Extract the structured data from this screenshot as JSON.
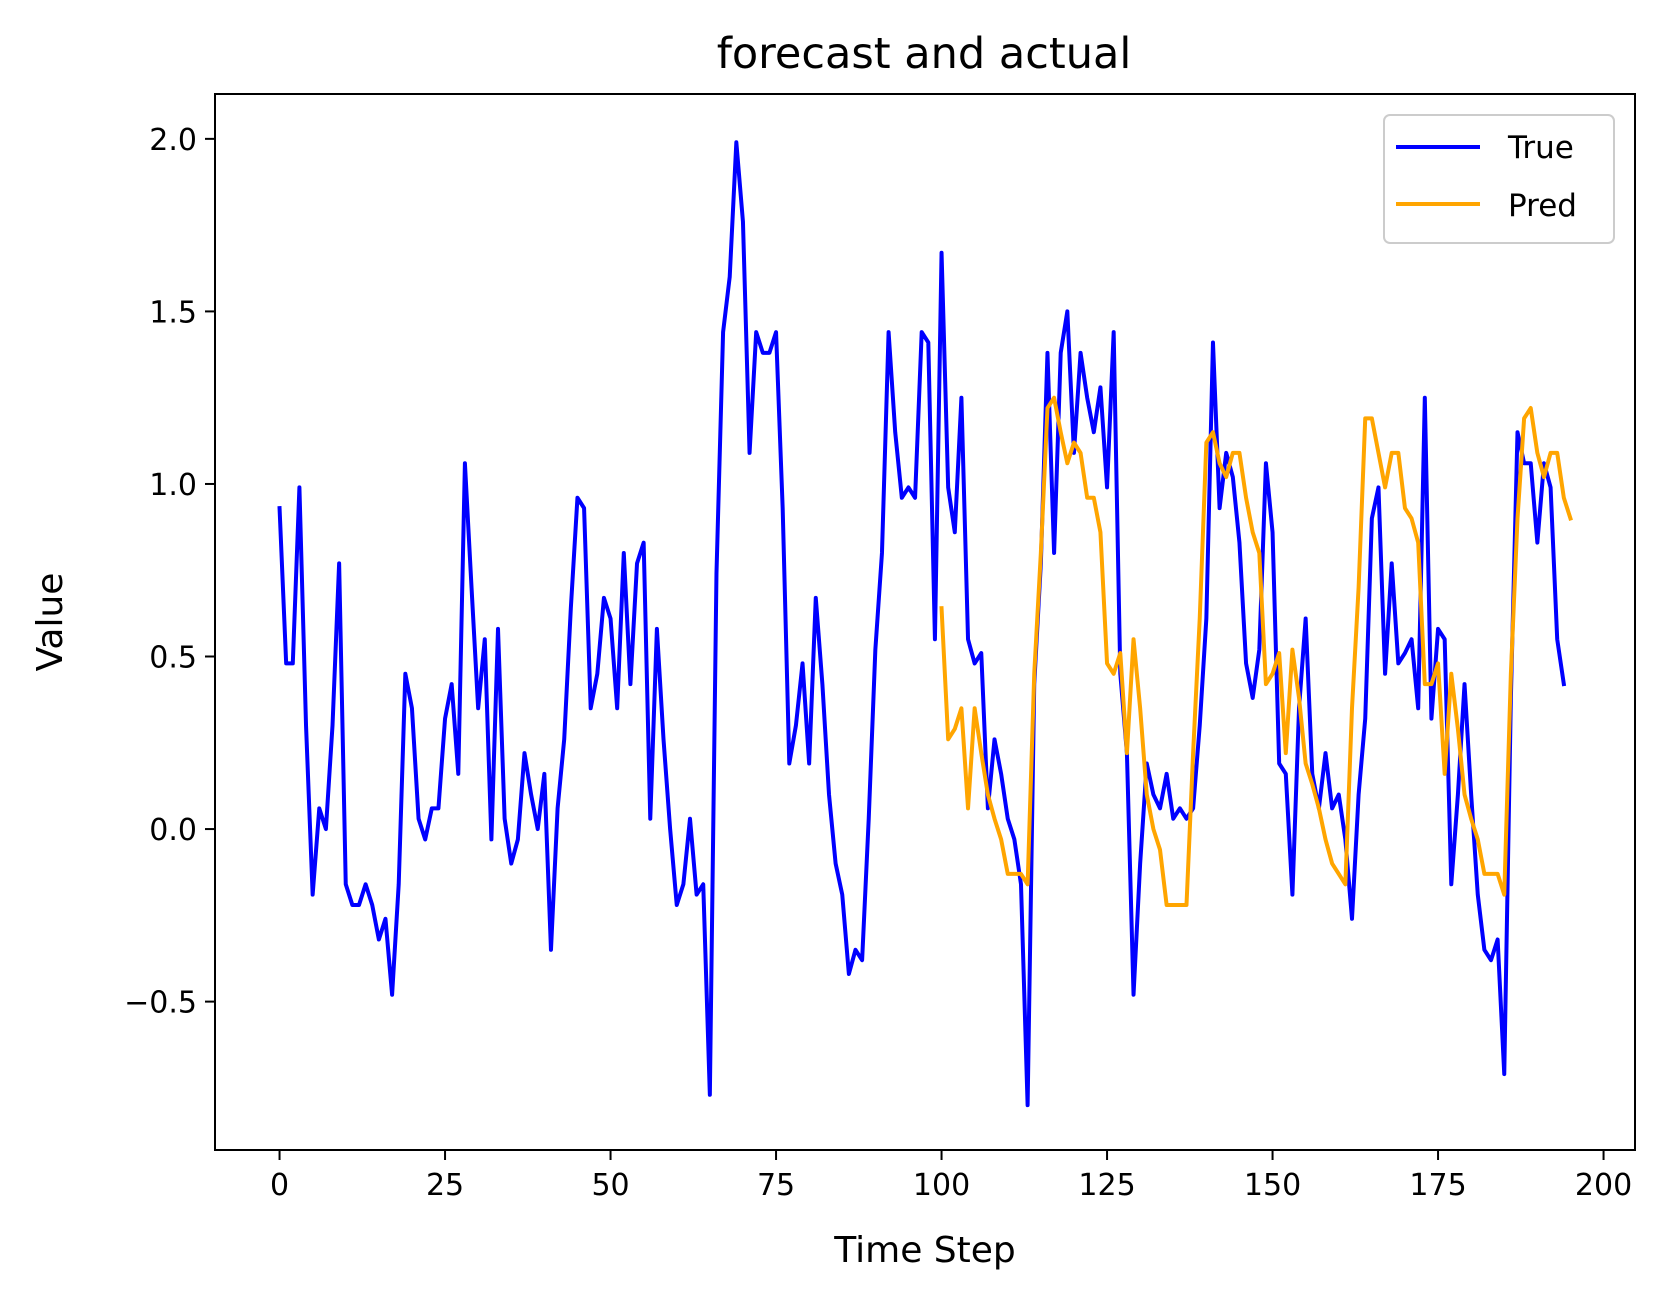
{
  "chart_data": {
    "type": "line",
    "title": "forecast and actual",
    "xlabel": "Time Step",
    "ylabel": "Value",
    "xlim": [
      -9.75,
      204.75
    ],
    "ylim": [
      -0.93,
      2.13
    ],
    "xticks": [
      0,
      25,
      50,
      75,
      100,
      125,
      150,
      175,
      200
    ],
    "xtick_labels": [
      "0",
      "25",
      "50",
      "75",
      "100",
      "125",
      "150",
      "175",
      "200"
    ],
    "yticks": [
      -0.5,
      0.0,
      0.5,
      1.0,
      1.5,
      2.0
    ],
    "ytick_labels": [
      "−0.5",
      "0.0",
      "0.5",
      "1.0",
      "1.5",
      "2.0"
    ],
    "legend_position": "top-right",
    "series": [
      {
        "name": "True",
        "color": "#0000ff",
        "x_start": 0,
        "values": [
          0.93,
          0.48,
          0.48,
          0.99,
          0.3,
          -0.19,
          0.06,
          0.0,
          0.3,
          0.77,
          -0.16,
          -0.22,
          -0.22,
          -0.16,
          -0.22,
          -0.32,
          -0.26,
          -0.48,
          -0.16,
          0.45,
          0.35,
          0.03,
          -0.03,
          0.06,
          0.06,
          0.32,
          0.42,
          0.16,
          1.06,
          0.7,
          0.35,
          0.55,
          -0.03,
          0.58,
          0.03,
          -0.1,
          -0.03,
          0.22,
          0.1,
          0.0,
          0.16,
          -0.35,
          0.06,
          0.26,
          0.64,
          0.96,
          0.93,
          0.35,
          0.45,
          0.67,
          0.61,
          0.35,
          0.8,
          0.42,
          0.77,
          0.83,
          0.03,
          0.58,
          0.26,
          0.0,
          -0.22,
          -0.16,
          0.03,
          -0.19,
          -0.16,
          -0.77,
          0.74,
          1.44,
          1.6,
          1.99,
          1.76,
          1.09,
          1.44,
          1.38,
          1.38,
          1.44,
          0.93,
          0.19,
          0.3,
          0.48,
          0.19,
          0.67,
          0.42,
          0.1,
          -0.1,
          -0.19,
          -0.42,
          -0.35,
          -0.38,
          0.03,
          0.52,
          0.8,
          1.44,
          1.15,
          0.96,
          0.99,
          0.96,
          1.44,
          1.41,
          0.55,
          1.67,
          0.99,
          0.86,
          1.25,
          0.55,
          0.48,
          0.51,
          0.06,
          0.26,
          0.16,
          0.03,
          -0.03,
          -0.16,
          -0.8,
          0.42,
          0.77,
          1.38,
          0.8,
          1.38,
          1.5,
          1.09,
          1.38,
          1.25,
          1.15,
          1.28,
          0.99,
          1.44,
          0.45,
          0.22,
          -0.48,
          -0.1,
          0.19,
          0.1,
          0.06,
          0.16,
          0.03,
          0.06,
          0.03,
          0.06,
          0.3,
          0.61,
          1.41,
          0.93,
          1.09,
          1.02,
          0.83,
          0.48,
          0.38,
          0.52,
          1.06,
          0.86,
          0.19,
          0.16,
          -0.19,
          0.35,
          0.61,
          0.16,
          0.06,
          0.22,
          0.06,
          0.1,
          -0.03,
          -0.26,
          0.1,
          0.32,
          0.9,
          0.99,
          0.45,
          0.77,
          0.48,
          0.51,
          0.55,
          0.35,
          1.25,
          0.32,
          0.58,
          0.55,
          -0.16,
          0.1,
          0.42,
          0.1,
          -0.19,
          -0.35,
          -0.38,
          -0.32,
          -0.71,
          0.38,
          1.15,
          1.06,
          1.06,
          0.83,
          1.06,
          0.99,
          0.55,
          0.42
        ]
      },
      {
        "name": "Pred",
        "color": "#ffa500",
        "x_start": 100,
        "values": [
          0.64,
          0.26,
          0.29,
          0.35,
          0.06,
          0.35,
          0.22,
          0.1,
          0.03,
          -0.03,
          -0.13,
          -0.13,
          -0.13,
          -0.16,
          0.45,
          0.8,
          1.22,
          1.25,
          1.15,
          1.06,
          1.12,
          1.09,
          0.96,
          0.96,
          0.86,
          0.48,
          0.45,
          0.51,
          0.22,
          0.55,
          0.35,
          0.1,
          0.0,
          -0.06,
          -0.22,
          -0.22,
          -0.22,
          -0.22,
          0.22,
          0.61,
          1.12,
          1.15,
          1.06,
          1.02,
          1.09,
          1.09,
          0.96,
          0.86,
          0.8,
          0.42,
          0.45,
          0.51,
          0.22,
          0.52,
          0.38,
          0.19,
          0.13,
          0.06,
          -0.03,
          -0.1,
          -0.13,
          -0.16,
          0.35,
          0.7,
          1.19,
          1.19,
          1.09,
          0.99,
          1.09,
          1.09,
          0.93,
          0.9,
          0.83,
          0.42,
          0.42,
          0.48,
          0.16,
          0.45,
          0.29,
          0.1,
          0.03,
          -0.03,
          -0.13,
          -0.13,
          -0.13,
          -0.19,
          0.45,
          0.9,
          1.19,
          1.22,
          1.09,
          1.02,
          1.09,
          1.09,
          0.96,
          0.9
        ]
      }
    ]
  }
}
